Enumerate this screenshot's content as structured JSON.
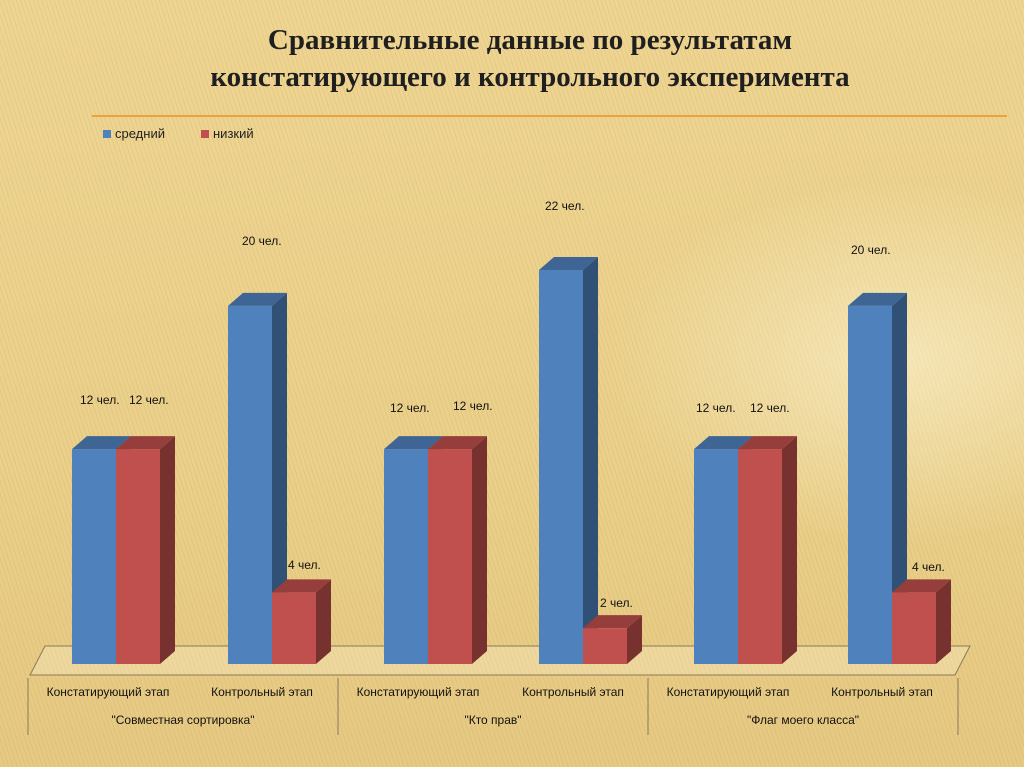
{
  "title_line1": "Сравнительные данные по результатам",
  "title_line2": "констатирующего и контрольного эксперимента",
  "chart_data": {
    "type": "bar",
    "title": "Сравнительные данные по результатам констатирующего и контрольного эксперимента",
    "xlabel": "",
    "ylabel": "",
    "ylim": [
      0,
      22
    ],
    "grid": false,
    "three_d": true,
    "legend_position": "top-left",
    "groups": [
      {
        "name": "\"Совместная сортировка\"",
        "stages": [
          "Констатирующий этап",
          "Контрольный этап"
        ]
      },
      {
        "name": "\"Кто прав\"",
        "stages": [
          "Констатирующий этап",
          "Контрольный этап"
        ]
      },
      {
        "name": "\"Флаг моего класса\"",
        "stages": [
          "Констатирующий этап",
          "Контрольный этап"
        ]
      }
    ],
    "categories": [
      "Констатирующий этап",
      "Контрольный этап",
      "Констатирующий этап",
      "Контрольный этап",
      "Констатирующий этап",
      "Контрольный этап"
    ],
    "series": [
      {
        "name": "средний",
        "color": "#4f81bd",
        "values": [
          12,
          20,
          12,
          22,
          12,
          20
        ]
      },
      {
        "name": "низкий",
        "color": "#c0504d",
        "values": [
          12,
          4,
          12,
          2,
          12,
          4
        ]
      }
    ],
    "data_labels": [
      [
        "12 чел.",
        "20 чел.",
        "12 чел.",
        "22 чел.",
        "12 чел.",
        "20 чел."
      ],
      [
        "12 чел.",
        "4 чел.",
        "12 чел.",
        "2 чел.",
        "12  чел.",
        "4 чел."
      ]
    ]
  }
}
